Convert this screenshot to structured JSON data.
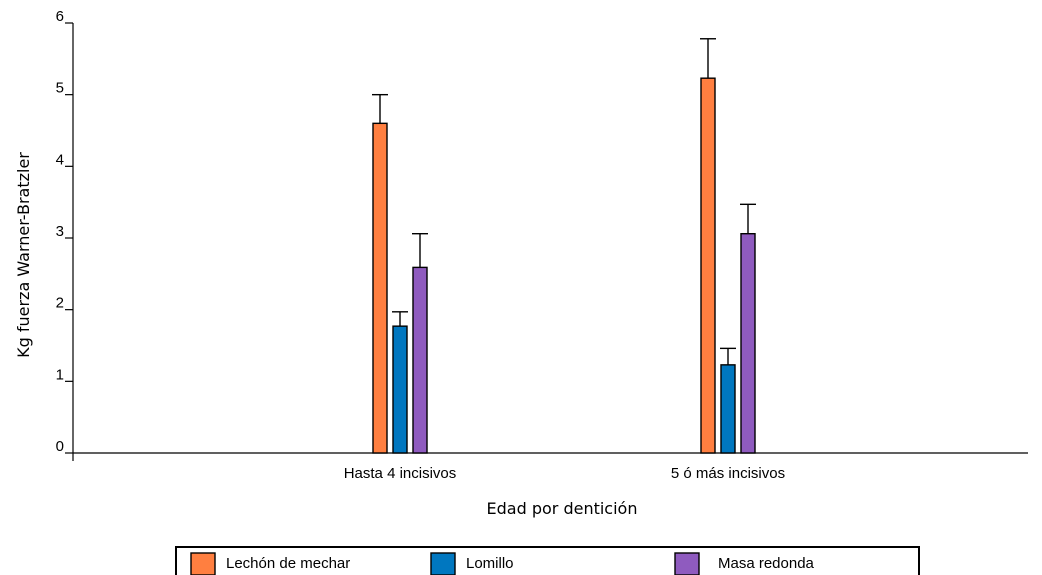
{
  "chart_data": {
    "type": "bar",
    "title": "",
    "xlabel": "Edad por dentición",
    "ylabel": "Kg fuerza Warner-Bratzler",
    "ylim": [
      0,
      6
    ],
    "yticks": [
      "0",
      "1",
      "2",
      "3",
      "4",
      "5",
      "6"
    ],
    "categories": [
      "Hasta 4 incisivos",
      "5 ó más incisivos"
    ],
    "series": [
      {
        "name": "Lechón de mechar",
        "color": "#ff7f40",
        "values": [
          4.6,
          5.23
        ],
        "errors": [
          0.4,
          0.55
        ]
      },
      {
        "name": "Lomillo",
        "color": "#0077c0",
        "values": [
          1.77,
          1.23
        ],
        "errors": [
          0.2,
          0.23
        ]
      },
      {
        "name": "Masa redonda",
        "color": "#8f5bbf",
        "values": [
          2.59,
          3.06
        ],
        "errors": [
          0.47,
          0.41
        ]
      }
    ],
    "error_bars": "upper",
    "grid": false,
    "legend_position": "bottom"
  }
}
